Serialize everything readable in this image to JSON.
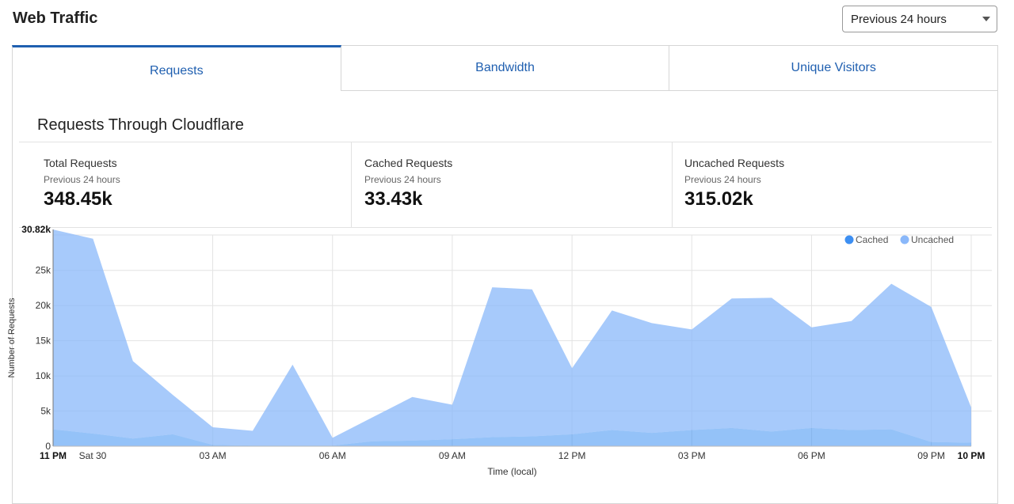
{
  "page": {
    "title": "Web Traffic"
  },
  "range_select": {
    "value": "Previous 24 hours"
  },
  "tabs": [
    {
      "label": "Requests",
      "active": true
    },
    {
      "label": "Bandwidth",
      "active": false
    },
    {
      "label": "Unique Visitors",
      "active": false
    }
  ],
  "section": {
    "title": "Requests Through Cloudflare"
  },
  "stats": [
    {
      "label": "Total Requests",
      "period": "Previous 24 hours",
      "value": "348.45k"
    },
    {
      "label": "Cached Requests",
      "period": "Previous 24 hours",
      "value": "33.43k"
    },
    {
      "label": "Uncached Requests",
      "period": "Previous 24 hours",
      "value": "315.02k"
    }
  ],
  "colors": {
    "accent": "#1f5fb0",
    "cached": "#3d8ff2",
    "uncached": "#8ab8fa"
  },
  "chart_data": {
    "type": "area",
    "stacked": true,
    "xlabel": "Time (local)",
    "ylabel": "Number of Requests",
    "ylim": [
      0,
      30820
    ],
    "y_max_label": "30.82k",
    "y_ticks": [
      "0",
      "5k",
      "10k",
      "15k",
      "20k",
      "25k"
    ],
    "y_tick_values": [
      0,
      5000,
      10000,
      15000,
      20000,
      25000
    ],
    "x_ticks": [
      "11 PM",
      "Sat 30",
      "03 AM",
      "06 AM",
      "09 AM",
      "12 PM",
      "03 PM",
      "06 PM",
      "09 PM",
      "10 PM"
    ],
    "x_tick_hours": [
      0,
      1,
      4,
      7,
      10,
      13,
      16,
      19,
      22,
      23
    ],
    "x_bold_ticks": [
      "11 PM",
      "10 PM"
    ],
    "hours": [
      0,
      1,
      2,
      3,
      4,
      5,
      6,
      7,
      8,
      9,
      10,
      11,
      12,
      13,
      14,
      15,
      16,
      17,
      18,
      19,
      20,
      21,
      22,
      23
    ],
    "legend": {
      "position": "top-right",
      "entries": [
        "Cached",
        "Uncached"
      ]
    },
    "grid": true,
    "series": [
      {
        "name": "Cached",
        "values": [
          2400,
          1800,
          1100,
          1700,
          200,
          100,
          100,
          100,
          700,
          800,
          1000,
          1300,
          1400,
          1700,
          2300,
          1900,
          2300,
          2600,
          2100,
          2600,
          2300,
          2400,
          600,
          500
        ]
      },
      {
        "name": "Uncached",
        "values": [
          28400,
          27700,
          11000,
          5600,
          2500,
          2100,
          11500,
          1100,
          3400,
          6200,
          4900,
          21300,
          20900,
          9400,
          17000,
          15600,
          14300,
          18400,
          19000,
          14300,
          15500,
          20700,
          19200,
          5000
        ]
      }
    ]
  }
}
